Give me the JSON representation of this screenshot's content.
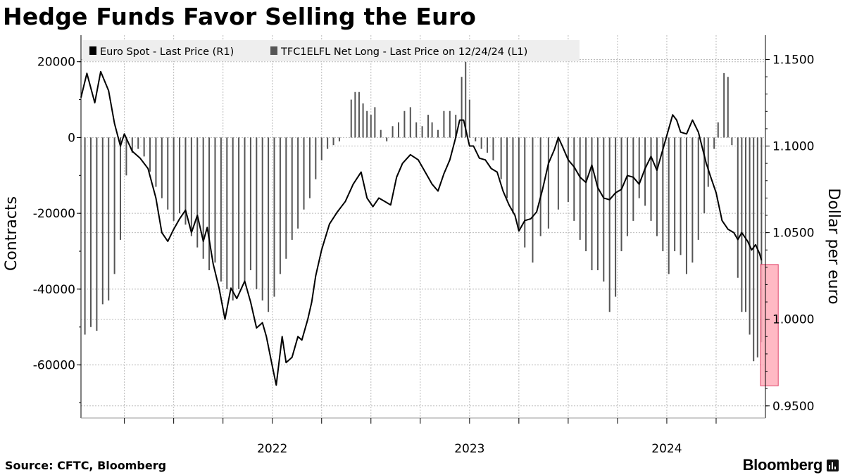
{
  "title": "Hedge Funds Favor Selling the Euro",
  "source": "Source: CFTC, Bloomberg",
  "brand": "Bloomberg",
  "colors": {
    "line": "#000000",
    "bars": "#555555",
    "highlight": "#ffadba",
    "highlight_border": "#e0456a",
    "grid": "#bbbbbb",
    "legend_bg": "#eeeeee"
  },
  "chart_data": {
    "type": "line",
    "title": "Hedge Funds Favor Selling the Euro",
    "legend": [
      {
        "name": "Euro Spot - Last Price (R1)",
        "swatch": "#000000"
      },
      {
        "name": "TFC1ELFL Net Long - Last Price on 12/24/24 (L1)",
        "swatch": "#555555"
      }
    ],
    "legend_position": "top-left",
    "x_ticks": [
      {
        "label": "2022",
        "t": 2022.0
      },
      {
        "label": "2023",
        "t": 2023.0
      },
      {
        "label": "2024",
        "t": 2024.0
      }
    ],
    "x_range": [
      2021.53,
      2025.0
    ],
    "left_axis": {
      "label": "Contracts",
      "ticks": [
        "20000",
        "0",
        "-20000",
        "-40000",
        "-60000"
      ],
      "range": [
        -74000,
        27000
      ]
    },
    "right_axis": {
      "label": "Dollar per euro",
      "ticks": [
        "1.1500",
        "1.1000",
        "1.0500",
        "1.0000",
        "0.9500"
      ],
      "range": [
        0.943,
        1.164
      ]
    },
    "series": [
      {
        "name": "Euro Spot - Last Price (R1)",
        "axis": "right",
        "points": [
          [
            2021.53,
            1.128
          ],
          [
            2021.56,
            1.142
          ],
          [
            2021.6,
            1.125
          ],
          [
            2021.63,
            1.143
          ],
          [
            2021.67,
            1.132
          ],
          [
            2021.7,
            1.113
          ],
          [
            2021.73,
            1.1
          ],
          [
            2021.75,
            1.107
          ],
          [
            2021.79,
            1.097
          ],
          [
            2021.83,
            1.093
          ],
          [
            2021.87,
            1.087
          ],
          [
            2021.91,
            1.07
          ],
          [
            2021.94,
            1.05
          ],
          [
            2021.97,
            1.045
          ],
          [
            2022.0,
            1.052
          ],
          [
            2022.03,
            1.058
          ],
          [
            2022.06,
            1.063
          ],
          [
            2022.09,
            1.05
          ],
          [
            2022.12,
            1.06
          ],
          [
            2022.15,
            1.045
          ],
          [
            2022.17,
            1.053
          ],
          [
            2022.2,
            1.032
          ],
          [
            2022.23,
            1.018
          ],
          [
            2022.26,
            1.0
          ],
          [
            2022.29,
            1.018
          ],
          [
            2022.32,
            1.012
          ],
          [
            2022.36,
            1.022
          ],
          [
            2022.39,
            1.01
          ],
          [
            2022.42,
            0.995
          ],
          [
            2022.45,
            0.998
          ],
          [
            2022.47,
            0.99
          ],
          [
            2022.5,
            0.973
          ],
          [
            2022.52,
            0.962
          ],
          [
            2022.55,
            0.99
          ],
          [
            2022.57,
            0.975
          ],
          [
            2022.6,
            0.978
          ],
          [
            2022.63,
            0.99
          ],
          [
            2022.65,
            0.988
          ],
          [
            2022.68,
            1.0
          ],
          [
            2022.7,
            1.01
          ],
          [
            2022.72,
            1.025
          ],
          [
            2022.75,
            1.04
          ],
          [
            2022.79,
            1.055
          ],
          [
            2022.83,
            1.062
          ],
          [
            2022.87,
            1.068
          ],
          [
            2022.91,
            1.078
          ],
          [
            2022.95,
            1.085
          ],
          [
            2022.98,
            1.07
          ],
          [
            2023.01,
            1.065
          ],
          [
            2023.04,
            1.07
          ],
          [
            2023.07,
            1.068
          ],
          [
            2023.1,
            1.066
          ],
          [
            2023.13,
            1.082
          ],
          [
            2023.16,
            1.09
          ],
          [
            2023.2,
            1.095
          ],
          [
            2023.24,
            1.092
          ],
          [
            2023.28,
            1.084
          ],
          [
            2023.31,
            1.078
          ],
          [
            2023.34,
            1.074
          ],
          [
            2023.37,
            1.084
          ],
          [
            2023.4,
            1.092
          ],
          [
            2023.43,
            1.105
          ],
          [
            2023.45,
            1.115
          ],
          [
            2023.47,
            1.115
          ],
          [
            2023.5,
            1.1
          ],
          [
            2023.52,
            1.1
          ],
          [
            2023.55,
            1.093
          ],
          [
            2023.58,
            1.092
          ],
          [
            2023.61,
            1.087
          ],
          [
            2023.64,
            1.085
          ],
          [
            2023.67,
            1.074
          ],
          [
            2023.7,
            1.066
          ],
          [
            2023.73,
            1.06
          ],
          [
            2023.75,
            1.051
          ],
          [
            2023.78,
            1.057
          ],
          [
            2023.81,
            1.058
          ],
          [
            2023.84,
            1.062
          ],
          [
            2023.87,
            1.075
          ],
          [
            2023.9,
            1.09
          ],
          [
            2023.93,
            1.098
          ],
          [
            2023.95,
            1.105
          ],
          [
            2023.97,
            1.1
          ],
          [
            2024.0,
            1.092
          ],
          [
            2024.03,
            1.088
          ],
          [
            2024.06,
            1.082
          ],
          [
            2024.09,
            1.079
          ],
          [
            2024.12,
            1.089
          ],
          [
            2024.15,
            1.076
          ],
          [
            2024.18,
            1.07
          ],
          [
            2024.21,
            1.069
          ],
          [
            2024.24,
            1.073
          ],
          [
            2024.27,
            1.075
          ],
          [
            2024.3,
            1.083
          ],
          [
            2024.33,
            1.082
          ],
          [
            2024.36,
            1.078
          ],
          [
            2024.39,
            1.087
          ],
          [
            2024.42,
            1.094
          ],
          [
            2024.45,
            1.086
          ],
          [
            2024.48,
            1.098
          ],
          [
            2024.5,
            1.106
          ],
          [
            2024.53,
            1.118
          ],
          [
            2024.55,
            1.115
          ],
          [
            2024.57,
            1.108
          ],
          [
            2024.6,
            1.107
          ],
          [
            2024.63,
            1.115
          ],
          [
            2024.66,
            1.108
          ],
          [
            2024.7,
            1.09
          ],
          [
            2024.72,
            1.083
          ],
          [
            2024.75,
            1.073
          ],
          [
            2024.78,
            1.057
          ],
          [
            2024.81,
            1.052
          ],
          [
            2024.84,
            1.05
          ],
          [
            2024.86,
            1.046
          ],
          [
            2024.88,
            1.05
          ],
          [
            2024.91,
            1.045
          ],
          [
            2024.93,
            1.04
          ],
          [
            2024.95,
            1.043
          ],
          [
            2024.97,
            1.038
          ],
          [
            2024.98,
            1.034
          ]
        ]
      },
      {
        "name": "TFC1ELFL Net Long - Last Price on 12/24/24 (L1)",
        "axis": "left",
        "type": "bar",
        "points": [
          [
            2021.55,
            -52000
          ],
          [
            2021.58,
            -50000
          ],
          [
            2021.61,
            -51000
          ],
          [
            2021.64,
            -44000
          ],
          [
            2021.67,
            -43000
          ],
          [
            2021.7,
            -36000
          ],
          [
            2021.73,
            -27000
          ],
          [
            2021.76,
            -10000
          ],
          [
            2021.79,
            -4000
          ],
          [
            2021.82,
            -3000
          ],
          [
            2021.85,
            -5000
          ],
          [
            2021.88,
            -9000
          ],
          [
            2021.91,
            -13000
          ],
          [
            2021.94,
            -16000
          ],
          [
            2021.97,
            -19000
          ],
          [
            2022.0,
            -22000
          ],
          [
            2022.03,
            -20000
          ],
          [
            2022.06,
            -23000
          ],
          [
            2022.09,
            -26000
          ],
          [
            2022.12,
            -29000
          ],
          [
            2022.15,
            -32000
          ],
          [
            2022.18,
            -35000
          ],
          [
            2022.21,
            -33000
          ],
          [
            2022.24,
            -38000
          ],
          [
            2022.27,
            -40000
          ],
          [
            2022.3,
            -43000
          ],
          [
            2022.33,
            -40000
          ],
          [
            2022.36,
            -38000
          ],
          [
            2022.39,
            -35000
          ],
          [
            2022.42,
            -40000
          ],
          [
            2022.45,
            -43000
          ],
          [
            2022.48,
            -46000
          ],
          [
            2022.51,
            -42000
          ],
          [
            2022.54,
            -36000
          ],
          [
            2022.57,
            -32000
          ],
          [
            2022.6,
            -27000
          ],
          [
            2022.63,
            -24000
          ],
          [
            2022.66,
            -19000
          ],
          [
            2022.69,
            -16000
          ],
          [
            2022.72,
            -11000
          ],
          [
            2022.75,
            -6000
          ],
          [
            2022.78,
            -3000
          ],
          [
            2022.81,
            -2000
          ],
          [
            2022.84,
            -1000
          ],
          [
            2022.9,
            10000
          ],
          [
            2022.92,
            12000
          ],
          [
            2022.94,
            12000
          ],
          [
            2022.96,
            9000
          ],
          [
            2022.98,
            7000
          ],
          [
            2023.0,
            6000
          ],
          [
            2023.02,
            8000
          ],
          [
            2023.05,
            2000
          ],
          [
            2023.08,
            -1000
          ],
          [
            2023.11,
            3000
          ],
          [
            2023.14,
            4000
          ],
          [
            2023.17,
            7000
          ],
          [
            2023.2,
            8000
          ],
          [
            2023.23,
            4000
          ],
          [
            2023.26,
            3000
          ],
          [
            2023.29,
            6000
          ],
          [
            2023.31,
            4000
          ],
          [
            2023.34,
            2000
          ],
          [
            2023.37,
            7000
          ],
          [
            2023.4,
            7000
          ],
          [
            2023.43,
            6000
          ],
          [
            2023.46,
            16000
          ],
          [
            2023.48,
            20000
          ],
          [
            2023.5,
            10000
          ],
          [
            2023.53,
            -1000
          ],
          [
            2023.56,
            -3000
          ],
          [
            2023.59,
            -4000
          ],
          [
            2023.62,
            -6000
          ],
          [
            2023.66,
            -11000
          ],
          [
            2023.69,
            -16000
          ],
          [
            2023.72,
            -20000
          ],
          [
            2023.75,
            -24000
          ],
          [
            2023.78,
            -29000
          ],
          [
            2023.82,
            -33000
          ],
          [
            2023.86,
            -26000
          ],
          [
            2023.9,
            -24000
          ],
          [
            2023.95,
            -19000
          ],
          [
            2024.0,
            -17000
          ],
          [
            2024.03,
            -22000
          ],
          [
            2024.06,
            -27000
          ],
          [
            2024.09,
            -30000
          ],
          [
            2024.12,
            -35000
          ],
          [
            2024.15,
            -35000
          ],
          [
            2024.18,
            -38000
          ],
          [
            2024.21,
            -46000
          ],
          [
            2024.24,
            -42000
          ],
          [
            2024.27,
            -30000
          ],
          [
            2024.3,
            -26000
          ],
          [
            2024.33,
            -22000
          ],
          [
            2024.36,
            -16000
          ],
          [
            2024.39,
            -18000
          ],
          [
            2024.42,
            -22000
          ],
          [
            2024.45,
            -26000
          ],
          [
            2024.48,
            -30000
          ],
          [
            2024.51,
            -36000
          ],
          [
            2024.54,
            -30000
          ],
          [
            2024.57,
            -31000
          ],
          [
            2024.6,
            -36000
          ],
          [
            2024.63,
            -33000
          ],
          [
            2024.66,
            -27000
          ],
          [
            2024.69,
            -20000
          ],
          [
            2024.71,
            -13000
          ],
          [
            2024.74,
            -3000
          ],
          [
            2024.76,
            4000
          ],
          [
            2024.79,
            17000
          ],
          [
            2024.81,
            16000
          ],
          [
            2024.83,
            -2000
          ],
          [
            2024.86,
            -37000
          ],
          [
            2024.88,
            -46000
          ],
          [
            2024.9,
            -46000
          ],
          [
            2024.92,
            -52000
          ],
          [
            2024.94,
            -59000
          ],
          [
            2024.96,
            -58000
          ],
          [
            2024.98,
            -54000
          ]
        ]
      }
    ],
    "highlight": {
      "x_range": [
        2024.975,
        2025.065
      ],
      "y_range": [
        -65500,
        -33500
      ],
      "axis": "left"
    }
  }
}
